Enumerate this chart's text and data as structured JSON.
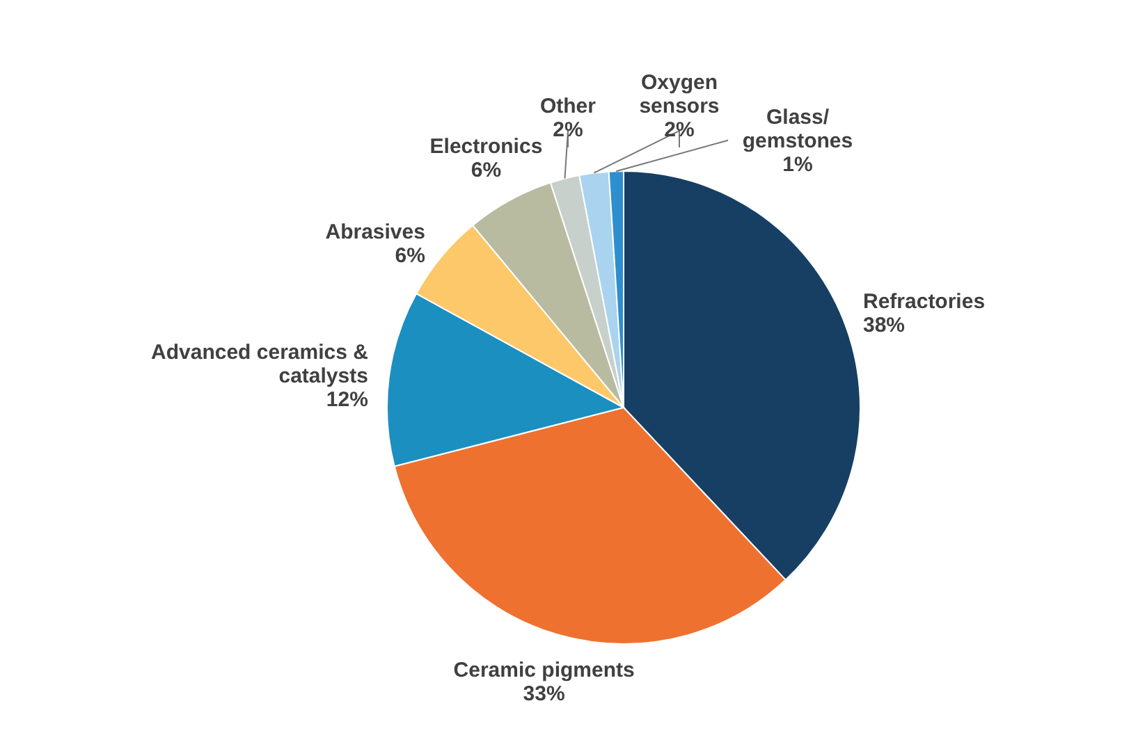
{
  "chart_data": {
    "type": "pie",
    "categories": [
      "Refractories",
      "Ceramic pigments",
      "Advanced ceramics &\ncatalysts",
      "Abrasives",
      "Electronics",
      "Other",
      "Oxygen\nsensors",
      "Glass/\ngemstones"
    ],
    "values": [
      38,
      33,
      12,
      6,
      6,
      2,
      2,
      1
    ],
    "value_labels": [
      "38%",
      "33%",
      "12%",
      "6%",
      "6%",
      "2%",
      "2%",
      "1%"
    ],
    "colors": [
      "#163f63",
      "#ee7130",
      "#1b8fbf",
      "#fcc86a",
      "#b9bba0",
      "#c8d0cc",
      "#a9d3ef",
      "#2d8fd0"
    ]
  }
}
